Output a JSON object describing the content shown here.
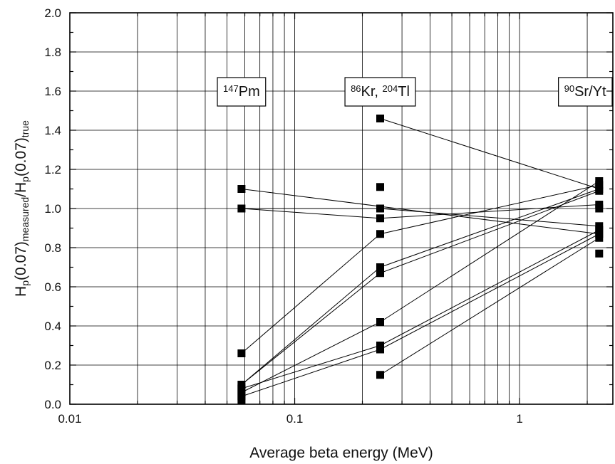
{
  "chart_data": {
    "type": "scatter",
    "xlabel": "Average beta energy (MeV)",
    "ylabel": {
      "parts": [
        "H",
        "p",
        "(0.07)",
        "measured",
        "/H",
        "p",
        "(0.07)",
        "true"
      ]
    },
    "xscale": "log",
    "xlim": [
      0.01,
      2.6
    ],
    "ylim": [
      0,
      2.0
    ],
    "grid": true,
    "x_ticks": [
      {
        "value": 0.01,
        "label": "0.01"
      },
      {
        "value": 0.1,
        "label": "0.1"
      },
      {
        "value": 1,
        "label": "1"
      }
    ],
    "y_ticks": [
      {
        "value": 0.0,
        "label": "0.0"
      },
      {
        "value": 0.2,
        "label": "0.2"
      },
      {
        "value": 0.4,
        "label": "0.4"
      },
      {
        "value": 0.6,
        "label": "0.6"
      },
      {
        "value": 0.8,
        "label": "0.8"
      },
      {
        "value": 1.0,
        "label": "1.0"
      },
      {
        "value": 1.2,
        "label": "1.2"
      },
      {
        "value": 1.4,
        "label": "1.4"
      },
      {
        "value": 1.6,
        "label": "1.6"
      },
      {
        "value": 1.8,
        "label": "1.8"
      },
      {
        "value": 2.0,
        "label": "2.0"
      }
    ],
    "annotations": [
      {
        "name": "pm147",
        "parts": [
          {
            "sup": "147"
          },
          {
            "text": "Pm"
          }
        ],
        "anchor_x": 0.058
      },
      {
        "name": "kr86-tl204",
        "parts": [
          {
            "sup": "86"
          },
          {
            "text": "Kr, "
          },
          {
            "sup": "204"
          },
          {
            "text": "Tl"
          }
        ],
        "anchor_x": 0.24
      },
      {
        "name": "sr90-yt",
        "parts": [
          {
            "sup": "90"
          },
          {
            "text": "Sr/Yt"
          }
        ],
        "anchor_x": 2.26
      }
    ],
    "energies": [
      0.058,
      0.24,
      2.26
    ],
    "points": [
      {
        "x": 0.058,
        "y": 1.1
      },
      {
        "x": 0.058,
        "y": 1.0
      },
      {
        "x": 0.058,
        "y": 0.26
      },
      {
        "x": 0.058,
        "y": 0.1
      },
      {
        "x": 0.058,
        "y": 0.08
      },
      {
        "x": 0.058,
        "y": 0.06
      },
      {
        "x": 0.058,
        "y": 0.04
      },
      {
        "x": 0.058,
        "y": 0.02
      },
      {
        "x": 0.24,
        "y": 1.46
      },
      {
        "x": 0.24,
        "y": 1.11
      },
      {
        "x": 0.24,
        "y": 1.0
      },
      {
        "x": 0.24,
        "y": 0.95
      },
      {
        "x": 0.24,
        "y": 0.87
      },
      {
        "x": 0.24,
        "y": 0.7
      },
      {
        "x": 0.24,
        "y": 0.67
      },
      {
        "x": 0.24,
        "y": 0.42
      },
      {
        "x": 0.24,
        "y": 0.3
      },
      {
        "x": 0.24,
        "y": 0.28
      },
      {
        "x": 0.24,
        "y": 0.15
      },
      {
        "x": 2.26,
        "y": 1.14
      },
      {
        "x": 2.26,
        "y": 1.12
      },
      {
        "x": 2.26,
        "y": 1.1
      },
      {
        "x": 2.26,
        "y": 1.09
      },
      {
        "x": 2.26,
        "y": 1.02
      },
      {
        "x": 2.26,
        "y": 1.0
      },
      {
        "x": 2.26,
        "y": 0.91
      },
      {
        "x": 2.26,
        "y": 0.89
      },
      {
        "x": 2.26,
        "y": 0.87
      },
      {
        "x": 2.26,
        "y": 0.85
      },
      {
        "x": 2.26,
        "y": 0.77
      }
    ],
    "connections": [
      {
        "y": [
          1.1,
          null,
          0.87
        ]
      },
      {
        "y": [
          1.0,
          0.95,
          1.02
        ]
      },
      {
        "y": [
          1.0,
          1.0,
          0.91
        ]
      },
      {
        "y": [
          null,
          1.46,
          1.1
        ]
      },
      {
        "y": [
          0.26,
          0.87,
          1.12
        ]
      },
      {
        "y": [
          0.1,
          0.7,
          1.1
        ]
      },
      {
        "y": [
          0.1,
          0.67,
          1.09
        ]
      },
      {
        "y": [
          0.06,
          0.42,
          1.14
        ]
      },
      {
        "y": [
          0.08,
          0.3,
          0.89
        ]
      },
      {
        "y": [
          0.04,
          0.28,
          0.87
        ]
      },
      {
        "y": [
          null,
          0.15,
          0.85
        ]
      }
    ]
  }
}
